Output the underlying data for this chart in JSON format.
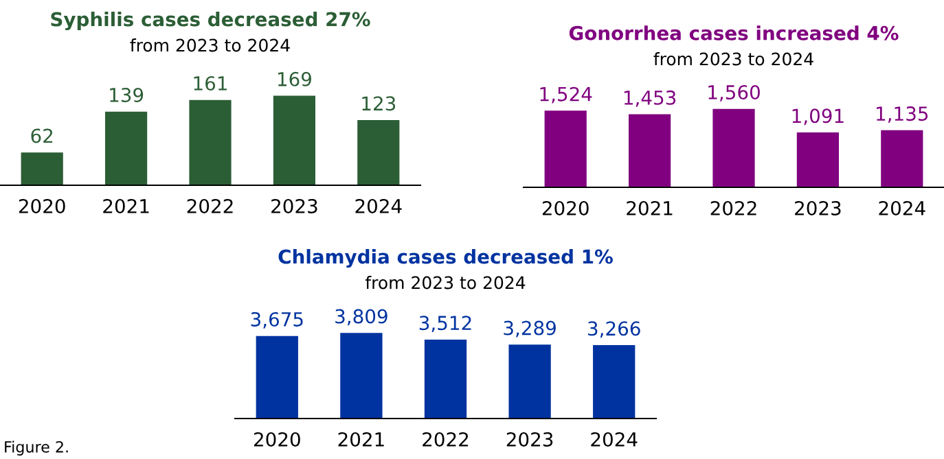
{
  "chart_data": [
    {
      "type": "bar",
      "title": "Syphilis cases decreased 27%",
      "subtitle": "from 2023 to 2024",
      "categories": [
        "2020",
        "2021",
        "2022",
        "2023",
        "2024"
      ],
      "values": [
        62,
        139,
        161,
        169,
        123
      ],
      "value_labels": [
        "62",
        "139",
        "161",
        "169",
        "123"
      ],
      "color": "#2c5e36",
      "tick_labels": "x"
    },
    {
      "type": "bar",
      "title": "Gonorrhea cases increased 4%",
      "subtitle": "from 2023 to 2024",
      "categories": [
        "2020",
        "2021",
        "2022",
        "2023",
        "2024"
      ],
      "values": [
        1524,
        1453,
        1560,
        1091,
        1135
      ],
      "value_labels": [
        "1,524",
        "1,453",
        "1,560",
        "1,091",
        "1,135"
      ],
      "color": "#80007f",
      "tick_labels": "x"
    },
    {
      "type": "bar",
      "title": "Chlamydia cases decreased 1%",
      "subtitle": "from 2023 to 2024",
      "categories": [
        "2020",
        "2021",
        "2022",
        "2023",
        "2024"
      ],
      "values": [
        3675,
        3809,
        3512,
        3289,
        3266
      ],
      "value_labels": [
        "3,675",
        "3,809",
        "3,512",
        "3,289",
        "3,266"
      ],
      "color": "#0033a0",
      "tick_labels": "x",
      "annotations": [
        "Figure 2."
      ]
    }
  ]
}
